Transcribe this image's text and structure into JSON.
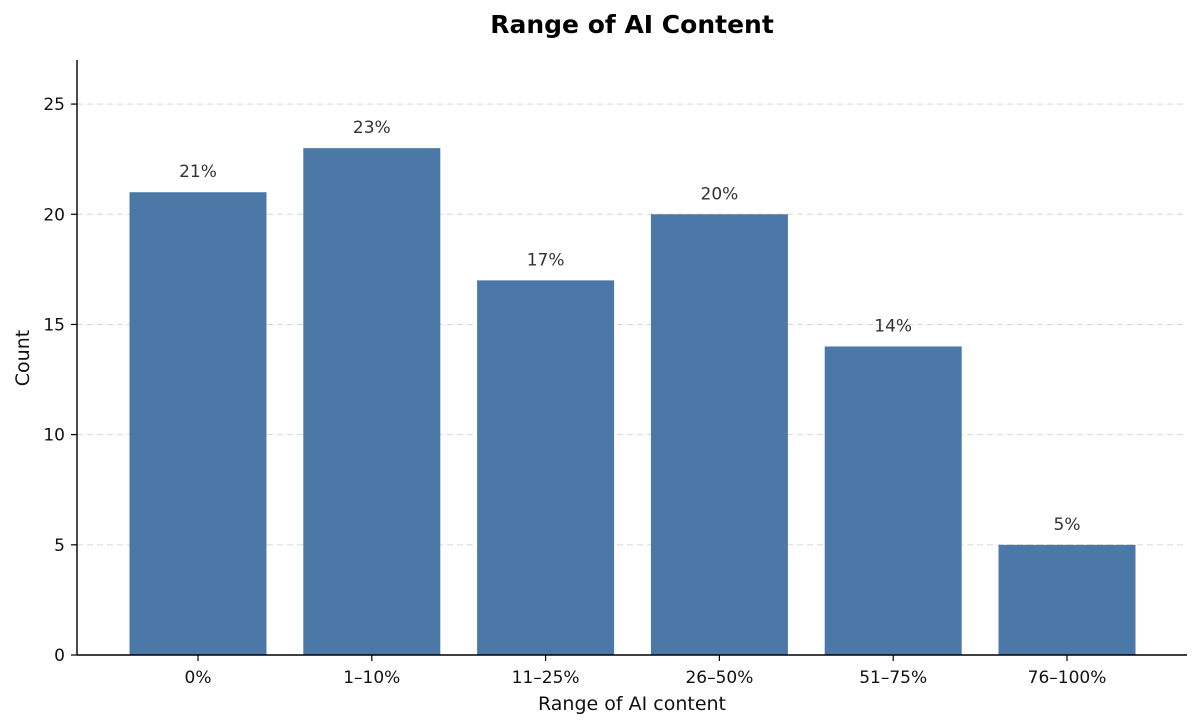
{
  "chart_data": {
    "type": "bar",
    "title": "Range of AI Content",
    "xlabel": "Range of AI content",
    "ylabel": "Count",
    "categories": [
      "0%",
      "1–10%",
      "11–25%",
      "26–50%",
      "51–75%",
      "76–100%"
    ],
    "values": [
      21,
      23,
      17,
      20,
      14,
      5
    ],
    "data_labels": [
      "21%",
      "23%",
      "17%",
      "20%",
      "14%",
      "5%"
    ],
    "ylim": [
      0,
      27
    ],
    "yticks": [
      0,
      5,
      10,
      15,
      20,
      25
    ],
    "grid": "y-dashed",
    "bar_color": "#4c78a8",
    "legend": "none"
  }
}
